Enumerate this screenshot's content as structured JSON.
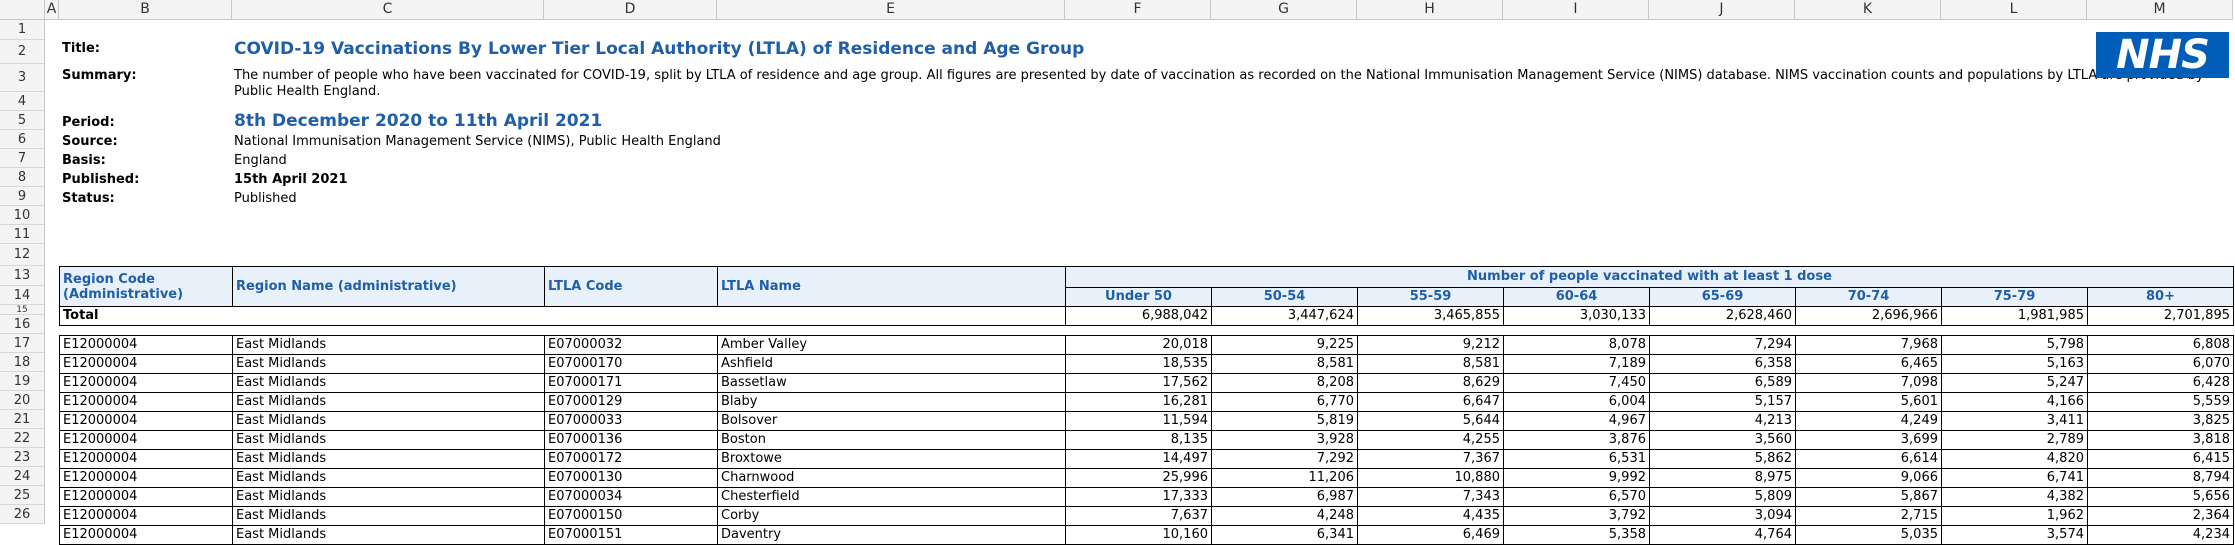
{
  "columns": [
    "A",
    "B",
    "C",
    "D",
    "E",
    "F",
    "G",
    "H",
    "I",
    "J",
    "K",
    "L",
    "M"
  ],
  "rows": [
    "1",
    "2",
    "3",
    "4",
    "5",
    "6",
    "7",
    "8",
    "9",
    "10",
    "11",
    "12",
    "13",
    "14",
    "15",
    "16",
    "17",
    "18",
    "19",
    "20",
    "21",
    "22",
    "23",
    "24",
    "25",
    "26"
  ],
  "meta": {
    "title_label": "Title:",
    "title": "COVID-19 Vaccinations By Lower Tier Local Authority (LTLA) of Residence and Age Group",
    "summary_label": "Summary:",
    "summary": "The number of people who have been vaccinated for COVID-19, split by LTLA of residence and age group. All figures are presented by date of vaccination as recorded on the National Immunisation Management Service (NIMS) database. NIMS vaccination counts and populations by LTLA are provided by Public Health England.",
    "period_label": "Period:",
    "period": "8th December 2020 to 11th April 2021",
    "source_label": "Source:",
    "source": "National Immunisation Management Service (NIMS), Public Health England",
    "basis_label": "Basis:",
    "basis": "England",
    "published_label": "Published:",
    "published": "15th April 2021",
    "status_label": "Status:",
    "status": "Published"
  },
  "logo": "NHS",
  "table": {
    "headers": {
      "region_code": "Region Code (Administrative)",
      "region_name": "Region Name (administrative)",
      "ltla_code": "LTLA Code",
      "ltla_name": "LTLA Name",
      "group": "Number of people vaccinated with at least 1 dose",
      "ages": [
        "Under 50",
        "50-54",
        "55-59",
        "60-64",
        "65-69",
        "70-74",
        "75-79",
        "80+"
      ]
    },
    "total": {
      "label": "Total",
      "values": [
        "6,988,042",
        "3,447,624",
        "3,465,855",
        "3,030,133",
        "2,628,460",
        "2,696,966",
        "1,981,985",
        "2,701,895"
      ]
    },
    "rows": [
      [
        "E12000004",
        "East Midlands",
        "E07000032",
        "Amber Valley",
        "20,018",
        "9,225",
        "9,212",
        "8,078",
        "7,294",
        "7,968",
        "5,798",
        "6,808"
      ],
      [
        "E12000004",
        "East Midlands",
        "E07000170",
        "Ashfield",
        "18,535",
        "8,581",
        "8,581",
        "7,189",
        "6,358",
        "6,465",
        "5,163",
        "6,070"
      ],
      [
        "E12000004",
        "East Midlands",
        "E07000171",
        "Bassetlaw",
        "17,562",
        "8,208",
        "8,629",
        "7,450",
        "6,589",
        "7,098",
        "5,247",
        "6,428"
      ],
      [
        "E12000004",
        "East Midlands",
        "E07000129",
        "Blaby",
        "16,281",
        "6,770",
        "6,647",
        "6,004",
        "5,157",
        "5,601",
        "4,166",
        "5,559"
      ],
      [
        "E12000004",
        "East Midlands",
        "E07000033",
        "Bolsover",
        "11,594",
        "5,819",
        "5,644",
        "4,967",
        "4,213",
        "4,249",
        "3,411",
        "3,825"
      ],
      [
        "E12000004",
        "East Midlands",
        "E07000136",
        "Boston",
        "8,135",
        "3,928",
        "4,255",
        "3,876",
        "3,560",
        "3,699",
        "2,789",
        "3,818"
      ],
      [
        "E12000004",
        "East Midlands",
        "E07000172",
        "Broxtowe",
        "14,497",
        "7,292",
        "7,367",
        "6,531",
        "5,862",
        "6,614",
        "4,820",
        "6,415"
      ],
      [
        "E12000004",
        "East Midlands",
        "E07000130",
        "Charnwood",
        "25,996",
        "11,206",
        "10,880",
        "9,992",
        "8,975",
        "9,066",
        "6,741",
        "8,794"
      ],
      [
        "E12000004",
        "East Midlands",
        "E07000034",
        "Chesterfield",
        "17,333",
        "6,987",
        "7,343",
        "6,570",
        "5,809",
        "5,867",
        "4,382",
        "5,656"
      ],
      [
        "E12000004",
        "East Midlands",
        "E07000150",
        "Corby",
        "7,637",
        "4,248",
        "4,435",
        "3,792",
        "3,094",
        "2,715",
        "1,962",
        "2,364"
      ],
      [
        "E12000004",
        "East Midlands",
        "E07000151",
        "Daventry",
        "10,160",
        "6,341",
        "6,469",
        "5,358",
        "4,764",
        "5,035",
        "3,574",
        "4,234"
      ]
    ]
  }
}
